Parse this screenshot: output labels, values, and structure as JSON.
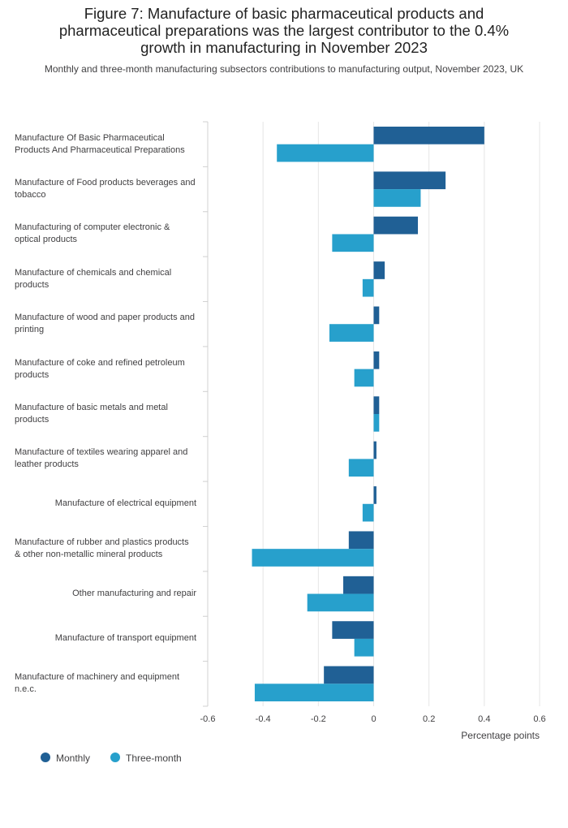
{
  "chart_data": {
    "type": "bar",
    "orientation": "horizontal",
    "title": "Figure 7: Manufacture of basic pharmaceutical products and pharmaceutical preparations was the largest contributor to the 0.4% growth in manufacturing in November 2023",
    "subtitle": "Monthly and three-month manufacturing subsectors contributions to manufacturing output, November 2023, UK",
    "x_label": "Percentage points",
    "categories": [
      "Manufacture Of Basic Pharmaceutical Products And Pharmaceutical Preparations",
      "Manufacture of Food products beverages and tobacco",
      "Manufacturing of computer electronic & optical products",
      "Manufacture of chemicals and chemical products",
      "Manufacture of wood and paper products and printing",
      "Manufacture of coke and refined petroleum products",
      "Manufacture of basic metals and metal products",
      "Manufacture of textiles wearing apparel and leather products",
      "Manufacture of electrical equipment",
      "Manufacture of rubber and plastics products & other non-metallic mineral products",
      "Other manufacturing and repair",
      "Manufacture of transport equipment",
      "Manufacture of machinery and equipment n.e.c."
    ],
    "series": [
      {
        "name": "Monthly",
        "color": "#206095",
        "values": [
          0.4,
          0.26,
          0.16,
          0.04,
          0.02,
          0.02,
          0.02,
          0.01,
          0.01,
          -0.09,
          -0.11,
          -0.15,
          -0.18
        ]
      },
      {
        "name": "Three-month",
        "color": "#27a0cc",
        "values": [
          -0.35,
          0.17,
          -0.15,
          -0.04,
          -0.16,
          -0.07,
          0.02,
          -0.09,
          -0.04,
          -0.44,
          -0.24,
          -0.07,
          -0.43
        ]
      }
    ],
    "xlim": [
      -0.6,
      0.6
    ],
    "xticks": [
      -0.6,
      -0.4,
      -0.2,
      0,
      0.2,
      0.4,
      0.6
    ],
    "grid": true,
    "legend": "bottom-left"
  }
}
